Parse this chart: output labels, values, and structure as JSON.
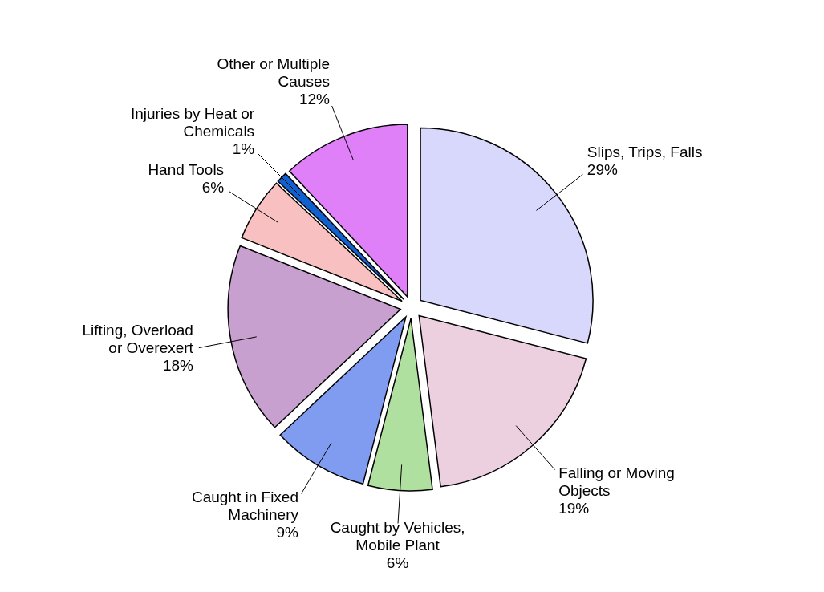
{
  "chart_data": {
    "type": "pie",
    "categories": [
      "Slips, Trips, Falls",
      "Falling or Moving Objects",
      "Caught by Vehicles, Mobile Plant",
      "Caught in Fixed Machinery",
      "Lifting, Overload or Overexert",
      "Hand Tools",
      "Injuries by Heat or Chemicals",
      "Other or Multiple Causes"
    ],
    "values": [
      29,
      19,
      6,
      9,
      18,
      6,
      1,
      12
    ],
    "value_labels": [
      "29%",
      "19%",
      "6%",
      "9%",
      "18%",
      "6%",
      "1%",
      "12%"
    ],
    "colors": [
      "#d8d8fc",
      "#ecd0e0",
      "#b0e0a0",
      "#7f9cf0",
      "#c8a0d0",
      "#f8c0c0",
      "#1060d0",
      "#e080f8"
    ]
  }
}
